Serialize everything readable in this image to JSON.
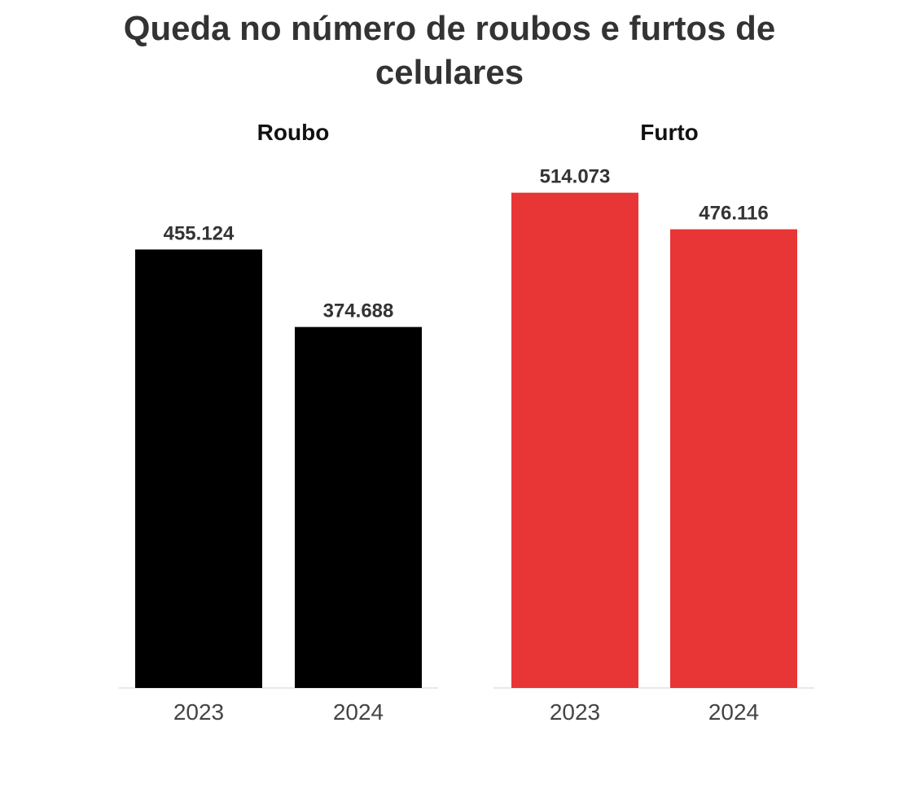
{
  "chart_data": {
    "type": "bar",
    "title": "Queda no número de roubos e furtos de celulares",
    "title_lines": [
      "Queda no número de roubos e furtos de",
      "celulares"
    ],
    "categories": [
      "2023",
      "2024"
    ],
    "ylim": [
      0,
      540000
    ],
    "grid": false,
    "panels": [
      {
        "name": "Roubo",
        "color": "#000000",
        "values": [
          455124,
          374688
        ],
        "labels": [
          "455.124",
          "374.688"
        ]
      },
      {
        "name": "Furto",
        "color": "#e83535",
        "values": [
          514073,
          476116
        ],
        "labels": [
          "514.073",
          "476.116"
        ]
      }
    ]
  }
}
